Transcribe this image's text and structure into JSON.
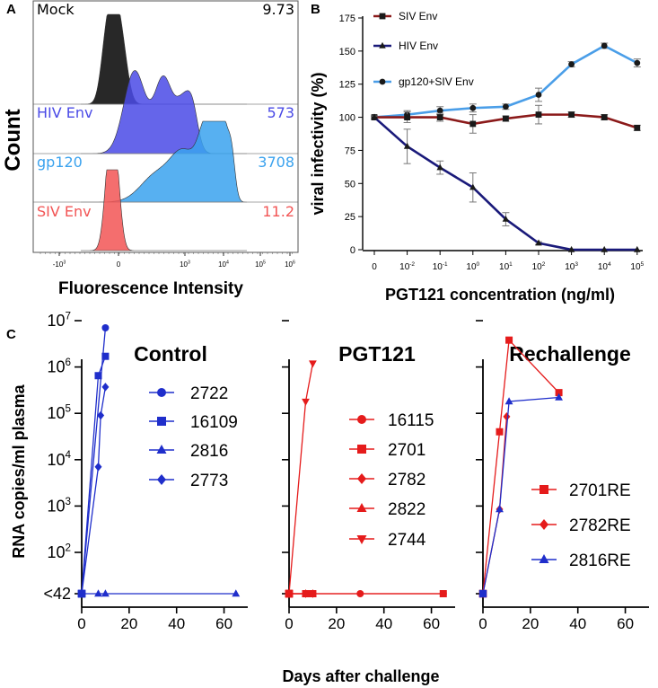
{
  "panel_letters": {
    "a": "A",
    "b": "B",
    "c": "C"
  },
  "chart_data": [
    {
      "type": "area",
      "panel": "A",
      "title": "",
      "xlabel": "Fluorescence Intensity",
      "ylabel": "Count",
      "x_scale": "biexponential",
      "xtick_labels": [
        "-10^3",
        "0",
        "10^3",
        "10^4",
        "10^5",
        "10^6"
      ],
      "xtick_values": [
        -1000,
        0,
        1000,
        10000,
        100000,
        1000000
      ],
      "series": [
        {
          "name": "Mock",
          "mfi": "9.73",
          "color": "#1c1c1c"
        },
        {
          "name": "HIV Env",
          "mfi": "573",
          "color": "#4a4ae6"
        },
        {
          "name": "gp120",
          "mfi": "3708",
          "color": "#3aa2ee"
        },
        {
          "name": "SIV Env",
          "mfi": "11.2",
          "color": "#f25555"
        }
      ]
    },
    {
      "type": "line",
      "panel": "B",
      "title": "",
      "xlabel": "PGT121 concentration (ng/ml)",
      "ylabel": "viral infectivity (%)",
      "ylim": [
        0,
        175
      ],
      "yticks": [
        0,
        25,
        50,
        75,
        100,
        125,
        150,
        175
      ],
      "categories": [
        "0",
        "10^-2",
        "10^-1",
        "10^0",
        "10^1",
        "10^2",
        "10^3",
        "10^4",
        "10^5"
      ],
      "series": [
        {
          "name": "SIV Env",
          "color": "#8b1a1a",
          "marker": "square",
          "values": [
            100,
            100,
            100,
            95,
            99,
            102,
            102,
            100,
            92
          ],
          "errors": [
            1,
            4,
            3,
            7,
            2,
            7,
            2,
            2,
            2
          ]
        },
        {
          "name": "HIV Env",
          "color": "#1a1a7a",
          "marker": "triangle",
          "values": [
            100,
            78,
            62,
            47,
            23,
            5,
            0,
            0,
            0
          ],
          "errors": [
            1,
            13,
            5,
            11,
            5,
            1,
            0,
            0,
            0
          ]
        },
        {
          "name": "gp120+SIV Env",
          "color": "#4a9ee8",
          "marker": "circle",
          "values": [
            100,
            102,
            105,
            107,
            108,
            117,
            140,
            154,
            141
          ],
          "errors": [
            1,
            3,
            3,
            3,
            2,
            5,
            2,
            2,
            3
          ]
        }
      ]
    },
    {
      "type": "line",
      "panel": "C-Control",
      "title": "Control",
      "ylabel": "RNA copies/ml plasma",
      "xlabel": "Days after challenge",
      "y_scale": "log",
      "ytick_labels": [
        "<42",
        "10^2",
        "10^3",
        "10^4",
        "10^5",
        "10^6",
        "10^7"
      ],
      "xticks": [
        0,
        20,
        40,
        60
      ],
      "xlim": [
        0,
        70
      ],
      "color": "#1f2ecb",
      "series": [
        {
          "name": "2722",
          "marker": "circle",
          "points": [
            [
              0,
              42
            ],
            [
              10,
              7000000
            ]
          ]
        },
        {
          "name": "16109",
          "marker": "square",
          "points": [
            [
              0,
              42
            ],
            [
              7,
              650000
            ],
            [
              10,
              1700000
            ]
          ]
        },
        {
          "name": "2816",
          "marker": "triangle",
          "points": [
            [
              0,
              42
            ],
            [
              7,
              42
            ],
            [
              10,
              42
            ],
            [
              65,
              42
            ]
          ]
        },
        {
          "name": "2773",
          "marker": "diamond",
          "points": [
            [
              0,
              42
            ],
            [
              7,
              7000
            ],
            [
              8,
              90000
            ],
            [
              10,
              370000
            ]
          ]
        }
      ]
    },
    {
      "type": "line",
      "panel": "C-PGT121",
      "title": "PGT121",
      "xticks": [
        0,
        20,
        40,
        60
      ],
      "xlim": [
        0,
        70
      ],
      "y_scale": "log",
      "color": "#e51b1b",
      "series": [
        {
          "name": "16115",
          "marker": "circle",
          "points": [
            [
              0,
              42
            ],
            [
              7,
              42
            ],
            [
              10,
              42
            ],
            [
              30,
              42
            ],
            [
              65,
              42
            ]
          ]
        },
        {
          "name": "2701",
          "marker": "square",
          "points": [
            [
              0,
              42
            ],
            [
              7,
              42
            ],
            [
              8,
              42
            ],
            [
              10,
              42
            ],
            [
              65,
              42
            ]
          ]
        },
        {
          "name": "2782",
          "marker": "diamond",
          "points": [
            [
              0,
              42
            ],
            [
              7,
              42
            ],
            [
              10,
              42
            ]
          ]
        },
        {
          "name": "2822",
          "marker": "triangle",
          "points": [
            [
              0,
              42
            ],
            [
              7,
              42
            ],
            [
              10,
              42
            ]
          ]
        },
        {
          "name": "2744",
          "marker": "triangle-down",
          "points": [
            [
              0,
              42
            ],
            [
              7,
              180000
            ],
            [
              10,
              1200000
            ]
          ]
        }
      ]
    },
    {
      "type": "line",
      "panel": "C-Rechallenge",
      "title": "Rechallenge",
      "xticks": [
        0,
        20,
        40,
        60
      ],
      "xlim": [
        0,
        70
      ],
      "y_scale": "log",
      "series": [
        {
          "name": "2701RE",
          "marker": "square",
          "color": "#e51b1b",
          "points": [
            [
              0,
              42
            ],
            [
              7,
              40000
            ],
            [
              11,
              3800000
            ],
            [
              32,
              280000
            ]
          ]
        },
        {
          "name": "2782RE",
          "marker": "diamond",
          "color": "#e51b1b",
          "points": [
            [
              0,
              42
            ],
            [
              7,
              850
            ],
            [
              10,
              85000
            ]
          ]
        },
        {
          "name": "2816RE",
          "marker": "triangle",
          "color": "#1f2ecb",
          "points": [
            [
              0,
              42
            ],
            [
              7,
              850
            ],
            [
              11,
              180000
            ],
            [
              32,
              220000
            ]
          ]
        }
      ]
    }
  ]
}
